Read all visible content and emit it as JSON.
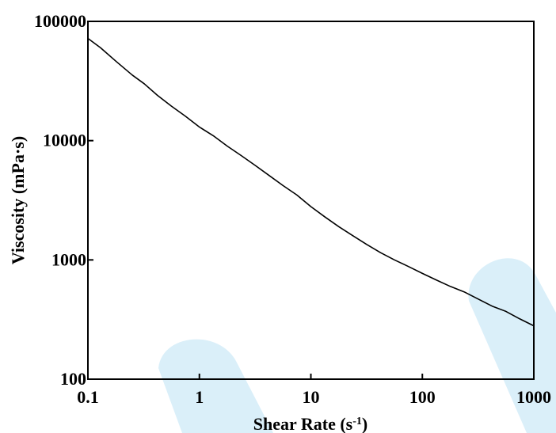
{
  "chart_data": {
    "type": "line",
    "xlabel_main": "Shear Rate (s",
    "xlabel_sup": "-1",
    "xlabel_close": ")",
    "ylabel": "Viscosity (mPa·s)",
    "x_scale": "log",
    "y_scale": "log",
    "xlim": [
      0.1,
      1000
    ],
    "ylim": [
      100,
      100000
    ],
    "x_ticks": [
      {
        "value": 0.1,
        "label": "0.1"
      },
      {
        "value": 1,
        "label": "1"
      },
      {
        "value": 10,
        "label": "10"
      },
      {
        "value": 100,
        "label": "100"
      },
      {
        "value": 1000,
        "label": "1000"
      }
    ],
    "y_ticks": [
      {
        "value": 100,
        "label": "100"
      },
      {
        "value": 1000,
        "label": "1000"
      },
      {
        "value": 10000,
        "label": "10000"
      },
      {
        "value": 100000,
        "label": "100000"
      }
    ],
    "grid": false,
    "series": [
      {
        "color": "#000000",
        "x": [
          0.1,
          0.13,
          0.18,
          0.25,
          0.32,
          0.42,
          0.56,
          0.75,
          1,
          1.33,
          1.78,
          2.37,
          3.16,
          4.22,
          5.62,
          7.5,
          10,
          13.3,
          17.8,
          23.7,
          31.6,
          42.2,
          56.2,
          75,
          100,
          133,
          178,
          237,
          316,
          422,
          562,
          750,
          1000
        ],
        "y": [
          72000,
          60000,
          46000,
          35500,
          30000,
          24000,
          19500,
          16000,
          13000,
          11000,
          9000,
          7500,
          6200,
          5100,
          4200,
          3500,
          2800,
          2300,
          1900,
          1600,
          1350,
          1150,
          1000,
          880,
          770,
          680,
          600,
          540,
          470,
          410,
          370,
          320,
          280
        ]
      }
    ]
  }
}
